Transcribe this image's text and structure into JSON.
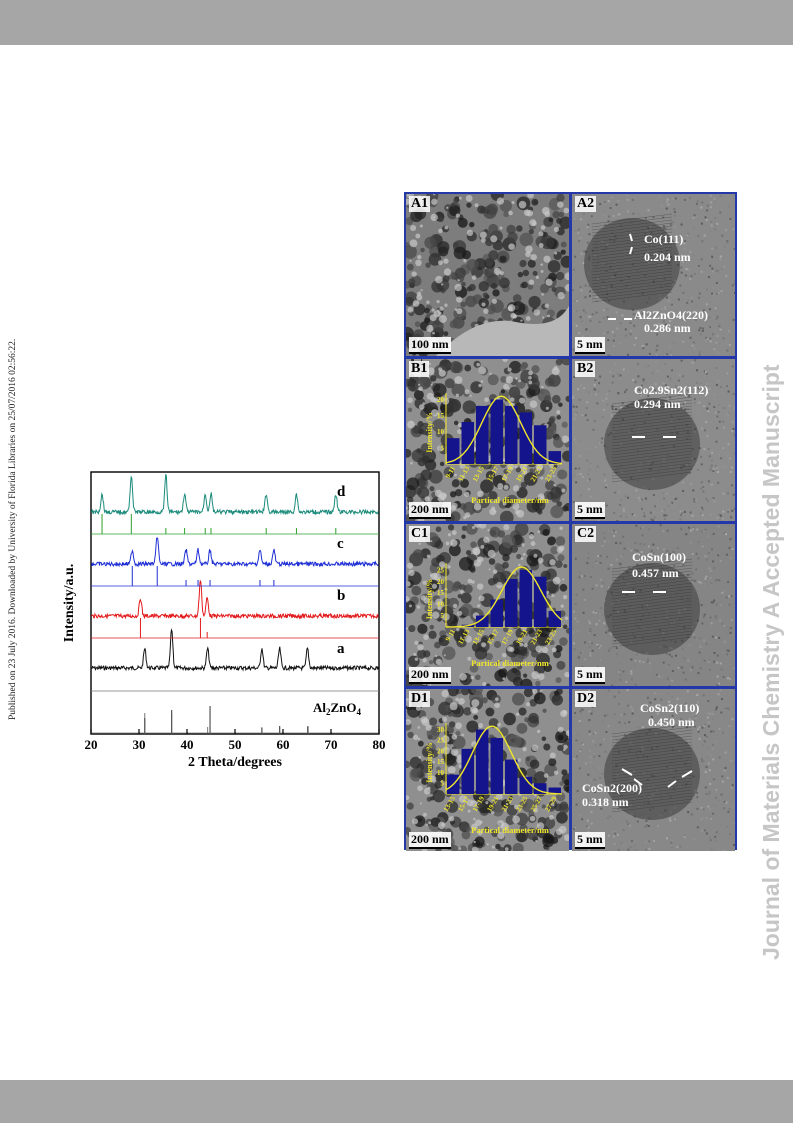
{
  "watermark_side": "Published on 23 July 2016. Downloaded by University of Florida Libraries on 25/07/2016 02:56:22.",
  "journal_watermark": "Journal of Materials Chemistry A Accepted Manuscript",
  "xrd": {
    "ylabel": "Intensity/a.u.",
    "xlabel": "2 Theta/degrees",
    "xticks": [
      "20",
      "30",
      "40",
      "50",
      "60",
      "70",
      "80"
    ],
    "xlim": [
      20,
      80
    ],
    "curve_labels": [
      "d",
      "c",
      "b",
      "a"
    ],
    "reference_label_main": "Al",
    "reference_label_sub": "2",
    "reference_label_rest": "ZnO",
    "reference_label_sub2": "4",
    "colors": {
      "a": "#111111",
      "b": "#e31a1c",
      "c": "#1f2fd6",
      "d": "#1a8a7a",
      "ref_d": "#2ca02c",
      "ref_c": "#1f2fd6",
      "ref_b": "#e31a1c",
      "ref_a": "#777777"
    }
  },
  "chart_data": {
    "type": "line",
    "xlabel": "2 Theta/degrees",
    "ylabel": "Intensity/a.u.",
    "xlim": [
      20,
      80
    ],
    "series": [
      {
        "name": "a",
        "peaks": [
          31.2,
          36.8,
          44.3,
          55.6,
          59.3,
          65.1
        ]
      },
      {
        "name": "b",
        "peaks": [
          30.3,
          42.8,
          44.2
        ]
      },
      {
        "name": "c",
        "peaks": [
          28.6,
          33.8,
          39.8,
          42.3,
          44.8,
          55.2,
          58.1
        ]
      },
      {
        "name": "d",
        "peaks": [
          22.3,
          28.4,
          35.6,
          39.5,
          43.8,
          45.0,
          56.5,
          62.8,
          71.0
        ]
      }
    ],
    "reference": {
      "name": "Al2ZnO4",
      "peaks": [
        31.2,
        36.8,
        44.8,
        55.6,
        59.3,
        65.2
      ]
    }
  },
  "tem": {
    "panels": [
      {
        "id": "A1",
        "scale": "100 nm"
      },
      {
        "id": "A2",
        "scale": "5 nm",
        "annotations": [
          "Co(111)",
          "0.204 nm",
          "Al2ZnO4(220)",
          "0.286 nm"
        ]
      },
      {
        "id": "B1",
        "scale": "200 nm"
      },
      {
        "id": "B2",
        "scale": "5 nm",
        "annotations": [
          "Co2.9Sn2(112)",
          "0.294 nm"
        ]
      },
      {
        "id": "C1",
        "scale": "200 nm"
      },
      {
        "id": "C2",
        "scale": "5 nm",
        "annotations": [
          "CoSn(100)",
          "0.457 nm"
        ]
      },
      {
        "id": "D1",
        "scale": "200 nm"
      },
      {
        "id": "D2",
        "scale": "5 nm",
        "annotations": [
          "CoSn2(110)",
          "0.450 nm",
          "CoSn2(200)",
          "0.318 nm"
        ]
      }
    ],
    "histograms": [
      {
        "panel": "B1",
        "ylabel": "Intensity/%",
        "xlabel": "Partical diameter/nm",
        "yticks": [
          "5",
          "10",
          "15",
          "20"
        ],
        "categories": [
          "9-11",
          "11-13",
          "13-15",
          "15-17",
          "17-19",
          "19-21",
          "21-23",
          "23-25"
        ],
        "values": [
          8,
          13,
          18,
          20,
          18,
          16,
          12,
          4
        ],
        "ymax": 22
      },
      {
        "panel": "C1",
        "ylabel": "Intensity/%",
        "xlabel": "Partical diameter/nm",
        "yticks": [
          "5",
          "10",
          "15",
          "20",
          "25"
        ],
        "categories": [
          "9-11",
          "11-13",
          "13-15",
          "15-17",
          "17-19",
          "19-21",
          "21-23",
          "23-25"
        ],
        "values": [
          0,
          1,
          5,
          12,
          21,
          25,
          22,
          7
        ],
        "ymax": 28
      },
      {
        "panel": "D1",
        "ylabel": "Intensity/%",
        "xlabel": "Partical diameter/nm",
        "yticks": [
          "5",
          "10",
          "15",
          "20",
          "25",
          "30"
        ],
        "categories": [
          "13-15",
          "15-17",
          "17-19",
          "19-21",
          "21-23",
          "23-25",
          "25-27",
          "27-29"
        ],
        "values": [
          9,
          21,
          30,
          26,
          16,
          8,
          5,
          3
        ],
        "ymax": 33
      }
    ],
    "hist_colors": {
      "bar": "#14148c",
      "curve": "#f0e62a",
      "text": "#f0e62a"
    }
  }
}
